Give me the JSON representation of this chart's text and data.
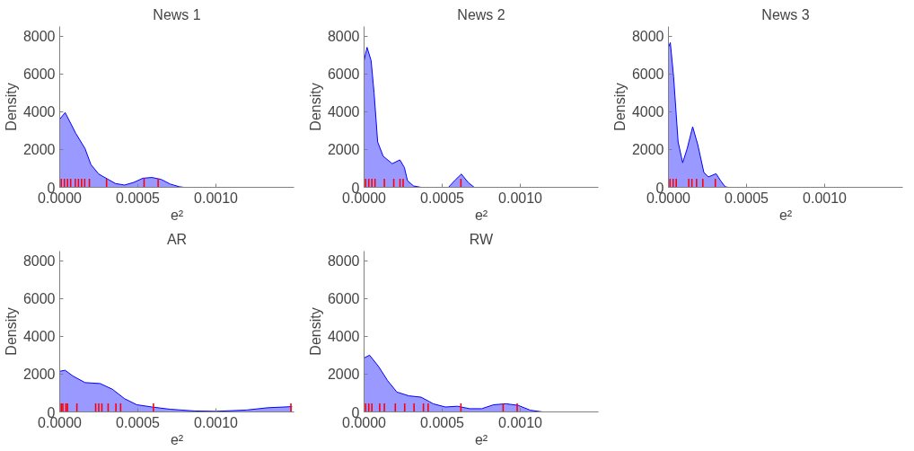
{
  "chart_data": [
    {
      "type": "area",
      "title": "News 1",
      "xlabel": "e²",
      "ylabel": "Density",
      "xlim": [
        0,
        0.0015
      ],
      "ylim": [
        0,
        8500
      ],
      "xticks": [
        {
          "value": 0,
          "label": "0.0000"
        },
        {
          "value": 0.0005,
          "label": "0.0005"
        },
        {
          "value": 0.001,
          "label": "0.0010"
        }
      ],
      "yticks": [
        0,
        2000,
        4000,
        6000,
        8000
      ],
      "grid": false,
      "series": [
        {
          "color": "#0000ff",
          "x": [
            0,
            3.5e-05,
            0.000103,
            0.000162,
            0.0002,
            0.00025,
            0.000308,
            0.000357,
            0.000415,
            0.000474,
            0.000532,
            0.00059,
            0.000649,
            0.000708,
            0.000766,
            0.000795
          ],
          "values": [
            3600,
            3950,
            2850,
            2050,
            1200,
            700,
            430,
            200,
            120,
            260,
            480,
            520,
            420,
            170,
            30,
            0
          ]
        },
        {
          "type": "bar",
          "color": "#ff0000",
          "x": [
            1e-05,
            3e-05,
            5e-05,
            7e-05,
            0.0001,
            0.00012,
            0.00014,
            0.00016,
            0.00019,
            0.0003,
            0.00054,
            0.00063
          ],
          "values": [
            450,
            450,
            450,
            450,
            450,
            450,
            450,
            450,
            450,
            450,
            450,
            450
          ]
        }
      ]
    },
    {
      "type": "area",
      "title": "News 2",
      "xlabel": "e²",
      "ylabel": "Density",
      "xlim": [
        0,
        0.0015
      ],
      "ylim": [
        0,
        8500
      ],
      "xticks": [
        {
          "value": 0,
          "label": "0.0000"
        },
        {
          "value": 0.0005,
          "label": "0.0005"
        },
        {
          "value": 0.001,
          "label": "0.0010"
        }
      ],
      "yticks": [
        0,
        2000,
        4000,
        6000,
        8000
      ],
      "grid": false,
      "series": [
        {
          "color": "#0000ff",
          "x": [
            0,
            1.9e-05,
            4.5e-05,
            6.4e-05,
            8.7e-05,
            0.000122,
            0.00018,
            0.000229,
            0.000258,
            0.000278,
            0.000317,
            0.000365,
            0.00054,
            0.000579,
            0.000623,
            0.000666,
            0.000705
          ],
          "values": [
            6700,
            7400,
            6700,
            5000,
            2400,
            1650,
            1250,
            1450,
            1050,
            350,
            70,
            0,
            0,
            350,
            700,
            260,
            0
          ]
        },
        {
          "type": "bar",
          "color": "#ff0000",
          "x": [
            1e-05,
            3e-05,
            5e-05,
            7e-05,
            0.00013,
            0.00019,
            0.00023,
            0.00025,
            0.00062
          ],
          "values": [
            450,
            450,
            450,
            450,
            450,
            450,
            450,
            450,
            450
          ]
        }
      ]
    },
    {
      "type": "area",
      "title": "News 3",
      "xlabel": "e²",
      "ylabel": "Density",
      "xlim": [
        0,
        0.0015
      ],
      "ylim": [
        0,
        8500
      ],
      "xticks": [
        {
          "value": 0,
          "label": "0.0000"
        },
        {
          "value": 0.0005,
          "label": "0.0005"
        },
        {
          "value": 0.001,
          "label": "0.0010"
        }
      ],
      "yticks": [
        0,
        2000,
        4000,
        6000,
        8000
      ],
      "grid": false,
      "series": [
        {
          "color": "#0000ff",
          "x": [
            0,
            1.2e-05,
            3.3e-05,
            6.2e-05,
            9.1e-05,
            0.00012,
            0.000155,
            0.000188,
            0.000227,
            0.000256,
            0.000305,
            0.000334,
            0.000363,
            0.000383
          ],
          "values": [
            7400,
            7650,
            5850,
            2400,
            1300,
            2050,
            3200,
            2250,
            780,
            550,
            720,
            350,
            30,
            0
          ]
        },
        {
          "type": "bar",
          "color": "#ff0000",
          "x": [
            1e-05,
            3e-05,
            5e-05,
            0.00013,
            0.00015,
            0.00018,
            0.00022,
            0.0003
          ],
          "values": [
            450,
            450,
            450,
            450,
            450,
            450,
            450,
            450
          ]
        }
      ]
    },
    {
      "type": "area",
      "title": "AR",
      "xlabel": "e²",
      "ylabel": "Density",
      "xlim": [
        0,
        0.0015
      ],
      "ylim": [
        0,
        8500
      ],
      "xticks": [
        {
          "value": 0,
          "label": "0.0000"
        },
        {
          "value": 0.0005,
          "label": "0.0005"
        },
        {
          "value": 0.001,
          "label": "0.0010"
        }
      ],
      "yticks": [
        0,
        2000,
        4000,
        6000,
        8000
      ],
      "grid": false,
      "series": [
        {
          "color": "#0000ff",
          "x": [
            0,
            3.5e-05,
            8.4e-05,
            0.000162,
            0.000259,
            0.000337,
            0.000415,
            0.000493,
            0.000591,
            0.000708,
            0.000864,
            0.001,
            0.001195,
            0.001331,
            0.001487
          ],
          "values": [
            2150,
            2200,
            1900,
            1550,
            1500,
            1200,
            700,
            380,
            260,
            140,
            50,
            30,
            100,
            220,
            280
          ]
        },
        {
          "type": "bar",
          "color": "#ff0000",
          "x": [
            1e-05,
            2e-05,
            4e-05,
            5e-05,
            0.00011,
            0.00023,
            0.00025,
            0.00027,
            0.00031,
            0.00036,
            0.00039,
            0.0006,
            0.00148
          ],
          "values": [
            450,
            450,
            450,
            450,
            450,
            450,
            450,
            450,
            450,
            450,
            450,
            450,
            450
          ]
        }
      ]
    },
    {
      "type": "area",
      "title": "RW",
      "xlabel": "e²",
      "ylabel": "Density",
      "xlim": [
        0,
        0.0015
      ],
      "ylim": [
        0,
        8500
      ],
      "xticks": [
        {
          "value": 0,
          "label": "0.0000"
        },
        {
          "value": 0.0005,
          "label": "0.0005"
        },
        {
          "value": 0.001,
          "label": "0.0010"
        }
      ],
      "yticks": [
        0,
        2000,
        4000,
        6000,
        8000
      ],
      "grid": false,
      "series": [
        {
          "color": "#0000ff",
          "x": [
            0,
            3.5e-05,
            9.3e-05,
            0.000151,
            0.00021,
            0.000287,
            0.000365,
            0.000443,
            0.00052,
            0.000598,
            0.000676,
            0.000753,
            0.00083,
            0.000908,
            0.000986,
            0.001064,
            0.001142
          ],
          "values": [
            2850,
            3000,
            2400,
            1650,
            1050,
            850,
            780,
            430,
            260,
            300,
            170,
            170,
            380,
            430,
            350,
            90,
            0
          ]
        },
        {
          "type": "bar",
          "color": "#ff0000",
          "x": [
            1e-05,
            3e-05,
            5e-05,
            0.0001,
            0.00013,
            0.0002,
            0.00026,
            0.00032,
            0.00038,
            0.00041,
            0.00062,
            0.00089,
            0.00098
          ],
          "values": [
            450,
            450,
            450,
            450,
            450,
            450,
            450,
            450,
            450,
            450,
            450,
            450,
            450
          ]
        }
      ]
    }
  ]
}
